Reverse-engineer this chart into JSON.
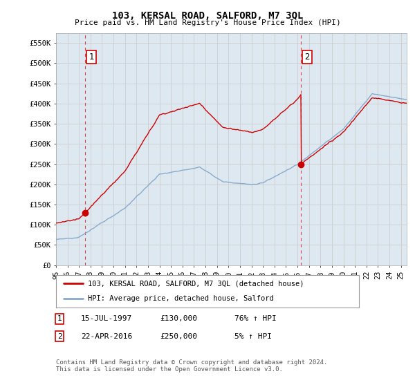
{
  "title": "103, KERSAL ROAD, SALFORD, M7 3QL",
  "subtitle": "Price paid vs. HM Land Registry's House Price Index (HPI)",
  "ylabel_ticks": [
    "£0",
    "£50K",
    "£100K",
    "£150K",
    "£200K",
    "£250K",
    "£300K",
    "£350K",
    "£400K",
    "£450K",
    "£500K",
    "£550K"
  ],
  "ytick_values": [
    0,
    50000,
    100000,
    150000,
    200000,
    250000,
    300000,
    350000,
    400000,
    450000,
    500000,
    550000
  ],
  "ylim": [
    0,
    575000
  ],
  "xlim_start": 1995.0,
  "xlim_end": 2025.5,
  "sale1_x": 1997.54,
  "sale1_y": 130000,
  "sale1_label": "1",
  "sale2_x": 2016.31,
  "sale2_y": 250000,
  "sale2_label": "2",
  "vline1_x": 1997.54,
  "vline2_x": 2016.31,
  "red_line_color": "#cc0000",
  "blue_line_color": "#88aacc",
  "vline_color": "#dd4444",
  "grid_color": "#cccccc",
  "background_color": "#ffffff",
  "plot_bg_color": "#dde8f0",
  "legend_line1": "103, KERSAL ROAD, SALFORD, M7 3QL (detached house)",
  "legend_line2": "HPI: Average price, detached house, Salford",
  "annotation1_date": "15-JUL-1997",
  "annotation1_price": "£130,000",
  "annotation1_hpi": "76% ↑ HPI",
  "annotation2_date": "22-APR-2016",
  "annotation2_price": "£250,000",
  "annotation2_hpi": "5% ↑ HPI",
  "footer": "Contains HM Land Registry data © Crown copyright and database right 2024.\nThis data is licensed under the Open Government Licence v3.0.",
  "xtick_years": [
    1995,
    1996,
    1997,
    1998,
    1999,
    2000,
    2001,
    2002,
    2003,
    2004,
    2005,
    2006,
    2007,
    2008,
    2009,
    2010,
    2011,
    2012,
    2013,
    2014,
    2015,
    2016,
    2017,
    2018,
    2019,
    2020,
    2021,
    2022,
    2023,
    2024,
    2025
  ]
}
